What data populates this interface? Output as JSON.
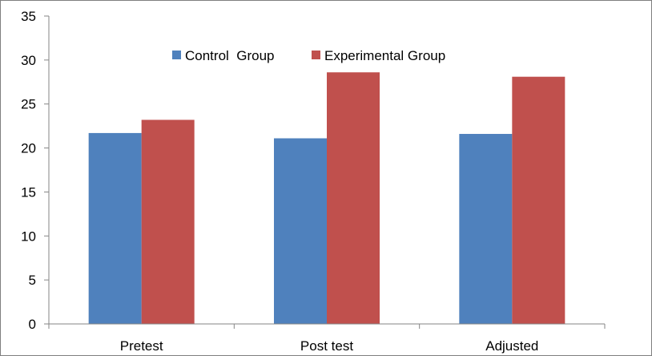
{
  "chart_data": {
    "type": "bar",
    "categories": [
      "Pretest",
      "Post test",
      "Adjusted"
    ],
    "series": [
      {
        "name": "Control  Group",
        "color": "#4f81bd",
        "values": [
          21.7,
          21.1,
          21.6
        ]
      },
      {
        "name": "Experimental Group",
        "color": "#c0504d",
        "values": [
          23.2,
          28.6,
          28.1
        ]
      }
    ],
    "title": "",
    "xlabel": "",
    "ylabel": "",
    "ylim": [
      0,
      35
    ],
    "yticks": [
      0,
      5,
      10,
      15,
      20,
      25,
      30,
      35
    ],
    "grid": false,
    "legend_position": "top-center"
  }
}
